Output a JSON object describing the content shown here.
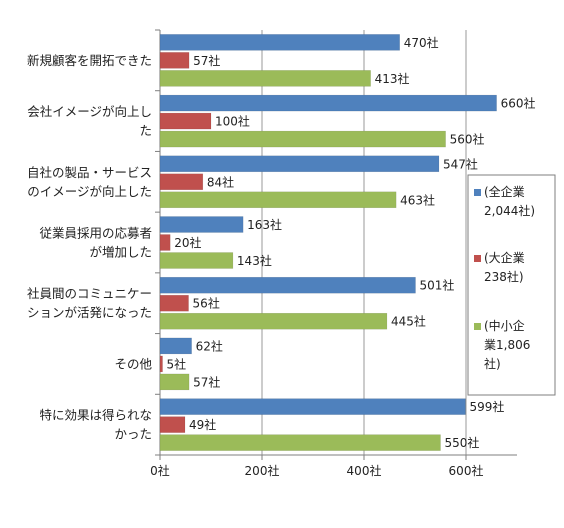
{
  "chart_data": {
    "type": "bar",
    "orientation": "horizontal",
    "categories": [
      [
        "新規顧客を開拓できた"
      ],
      [
        "会社イメージが向上し",
        "た"
      ],
      [
        "自社の製品・サービス",
        "のイメージが向上した"
      ],
      [
        "従業員採用の応募者",
        "が増加した"
      ],
      [
        "社員間のコミュニケー",
        "ションが活発になった"
      ],
      [
        "その他"
      ],
      [
        "特に効果は得られな",
        "かった"
      ]
    ],
    "series": [
      {
        "name": [
          "(全企業",
          "2,044社)"
        ],
        "color": "#4f81bd",
        "values": [
          470,
          660,
          547,
          163,
          501,
          62,
          599
        ],
        "labels": [
          "470社",
          "660社",
          "547社",
          "163社",
          "501社",
          "62社",
          "599社"
        ]
      },
      {
        "name": [
          "(大企業",
          "238社)"
        ],
        "color": "#c0504d",
        "values": [
          57,
          100,
          84,
          20,
          56,
          5,
          49
        ],
        "labels": [
          "57社",
          "100社",
          "84社",
          "20社",
          "56社",
          "5社",
          "49社"
        ]
      },
      {
        "name": [
          "(中小企",
          "業1,806",
          "社)"
        ],
        "color": "#9bbb59",
        "values": [
          413,
          560,
          463,
          143,
          445,
          57,
          550
        ],
        "labels": [
          "413社",
          "560社",
          "463社",
          "143社",
          "445社",
          "57社",
          "550社"
        ]
      }
    ],
    "xlim": [
      0,
      700
    ],
    "ticks": [
      0,
      200,
      400,
      600
    ],
    "tick_labels": [
      "0社",
      "200社",
      "400社",
      "600社"
    ],
    "grid": true,
    "legend_position": "right"
  }
}
